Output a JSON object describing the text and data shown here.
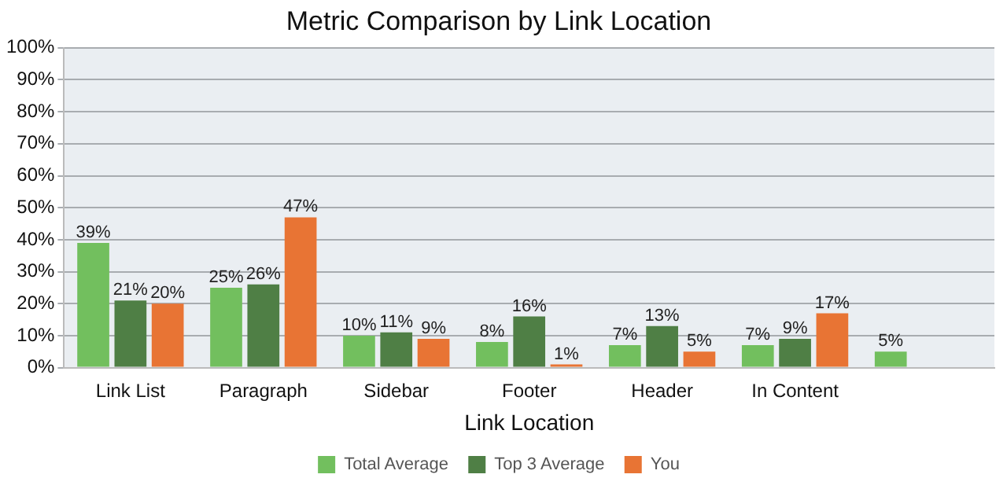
{
  "chart_data": {
    "type": "bar",
    "title": "Metric Comparison by Link Location",
    "xlabel": "Link Location",
    "categories": [
      "Link List",
      "Paragraph",
      "Sidebar",
      "Footer",
      "Header",
      "In Content",
      null
    ],
    "series": [
      {
        "name": "Total Average",
        "color": "#72bf5e",
        "values": [
          39,
          25,
          10,
          8,
          7,
          7,
          5
        ],
        "value_labels": [
          "39%",
          "25%",
          "10%",
          "8%",
          "7%",
          "7%",
          "5%"
        ]
      },
      {
        "name": "Top 3 Average",
        "color": "#4f7f45",
        "values": [
          21,
          26,
          11,
          16,
          13,
          9,
          null
        ],
        "value_labels": [
          "21%",
          "26%",
          "11%",
          "16%",
          "13%",
          "9%",
          null
        ]
      },
      {
        "name": "You",
        "color": "#e87434",
        "values": [
          20,
          47,
          9,
          1,
          5,
          17,
          null
        ],
        "value_labels": [
          "20%",
          "47%",
          "9%",
          "1%",
          "5%",
          "17%",
          null
        ]
      }
    ],
    "ylim": [
      0,
      100
    ],
    "yticks": [
      {
        "value": 0,
        "label": "0%"
      },
      {
        "value": 10,
        "label": "10%"
      },
      {
        "value": 20,
        "label": "20%"
      },
      {
        "value": 30,
        "label": "30%"
      },
      {
        "value": 40,
        "label": "40%"
      },
      {
        "value": 50,
        "label": "50%"
      },
      {
        "value": 60,
        "label": "60%"
      },
      {
        "value": 70,
        "label": "70%"
      },
      {
        "value": 80,
        "label": "80%"
      },
      {
        "value": 90,
        "label": "90%"
      },
      {
        "value": 100,
        "label": "100%"
      }
    ],
    "grid": "y",
    "legend": "bottom"
  }
}
